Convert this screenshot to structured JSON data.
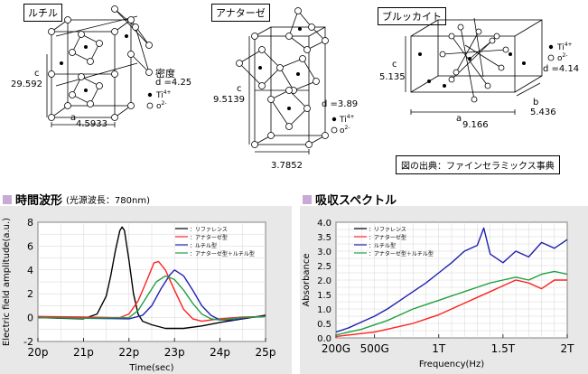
{
  "crystals": [
    {
      "name": "ルチル",
      "c": "c",
      "c_value": "29.592",
      "a": "a",
      "a_value": "4.5933",
      "density_label": "密度",
      "density": "d =4.25",
      "legend_ti": "Ti",
      "legend_ti_sup": "4+",
      "legend_o": "o",
      "legend_o_sup": "2-"
    },
    {
      "name": "アナターゼ",
      "c": "c",
      "c_value": "9.5139",
      "a_value": "3.7852",
      "density": "d =3.89",
      "legend_ti": "Ti",
      "legend_ti_sup": "4+",
      "legend_o": "o",
      "legend_o_sup": "2-"
    },
    {
      "name": "ブルッカイト",
      "c": "c",
      "c_value": "5.135",
      "a": "a",
      "a_value": "9.166",
      "b": "b",
      "b_value": "5.436",
      "density": "d =4.14",
      "legend_ti": "Ti",
      "legend_ti_sup": "4+",
      "legend_o": "o",
      "legend_o_sup": "2-"
    }
  ],
  "source_note": "図の出典：ファインセラミックス事典",
  "left_section": {
    "title": "時間波形",
    "subtitle": "(光源波長：780nm)"
  },
  "right_section": {
    "title": "吸収スペクトル"
  },
  "colors": {
    "reference": "#000000",
    "anatase": "#ff2020",
    "rutile": "#2020b0",
    "mixed": "#20a040",
    "panel_bg": "#e8e8e8",
    "title_square": "#c9a9d6"
  },
  "chart_data": [
    {
      "type": "line",
      "xlabel": "Time(sec)",
      "ylabel": "Electric field amplitude(a.u.)",
      "xlim": [
        20,
        25
      ],
      "ylim": [
        -2,
        8
      ],
      "x_ticks": [
        "20p",
        "21p",
        "22p",
        "23p",
        "24p",
        "25p"
      ],
      "y_ticks": [
        "-2",
        "0",
        "2",
        "4",
        "6",
        "8"
      ],
      "grid": true,
      "legend_position": "top-right",
      "series": [
        {
          "name": "：リファレンス",
          "color": "#000000",
          "x": [
            20.0,
            20.5,
            21.0,
            21.3,
            21.5,
            21.6,
            21.7,
            21.8,
            21.85,
            21.9,
            22.0,
            22.1,
            22.2,
            22.3,
            22.5,
            22.8,
            23.2,
            23.6,
            24.0,
            24.5,
            25.0
          ],
          "y": [
            0.0,
            -0.05,
            -0.1,
            0.3,
            1.8,
            3.5,
            5.6,
            7.3,
            7.6,
            7.3,
            4.8,
            2.0,
            0.3,
            -0.3,
            -0.6,
            -0.9,
            -0.9,
            -0.7,
            -0.4,
            -0.1,
            0.2
          ]
        },
        {
          "name": "：アナターゼ型",
          "color": "#ff2020",
          "x": [
            20.0,
            21.0,
            21.8,
            22.0,
            22.2,
            22.4,
            22.55,
            22.65,
            22.8,
            23.0,
            23.2,
            23.4,
            23.6,
            23.8,
            24.0,
            24.5,
            25.0
          ],
          "y": [
            0.1,
            0.05,
            0.0,
            0.3,
            1.4,
            3.2,
            4.6,
            4.7,
            4.0,
            2.3,
            0.7,
            -0.1,
            -0.3,
            -0.2,
            -0.1,
            0.05,
            0.1
          ]
        },
        {
          "name": "：ルチル型",
          "color": "#2020b0",
          "x": [
            20.0,
            21.0,
            22.0,
            22.3,
            22.5,
            22.7,
            22.9,
            23.0,
            23.2,
            23.4,
            23.6,
            23.8,
            24.0,
            24.3,
            24.6,
            25.0
          ],
          "y": [
            0.0,
            -0.05,
            -0.1,
            0.2,
            1.0,
            2.4,
            3.6,
            4.0,
            3.5,
            2.3,
            1.0,
            0.2,
            -0.2,
            -0.2,
            0.0,
            0.1
          ]
        },
        {
          "name": "：アナターゼ型＋ルチル型",
          "color": "#20a040",
          "x": [
            20.0,
            21.0,
            22.0,
            22.2,
            22.4,
            22.6,
            22.8,
            23.0,
            23.2,
            23.4,
            23.6,
            23.8,
            24.0,
            24.5,
            25.0
          ],
          "y": [
            0.0,
            -0.05,
            0.0,
            0.6,
            1.8,
            3.0,
            3.5,
            3.2,
            2.3,
            1.2,
            0.3,
            -0.1,
            -0.2,
            0.0,
            0.1
          ]
        }
      ]
    },
    {
      "type": "line",
      "xlabel": "Frequency(Hz)",
      "ylabel": "Absorbance",
      "xlim": [
        200,
        2000
      ],
      "ylim": [
        0,
        4.0
      ],
      "x_tick_values": [
        200,
        500,
        1000,
        1500,
        2000
      ],
      "x_ticks": [
        "200G",
        "500G",
        "1T",
        "1.5T",
        "2T"
      ],
      "y_ticks": [
        "0.0",
        "0.5",
        "1.0",
        "1.5",
        "2.0",
        "2.5",
        "3.0",
        "3.5",
        "4.0"
      ],
      "grid": true,
      "legend_position": "top-left",
      "series": [
        {
          "name": "：リファレンス",
          "color": "#000000",
          "x": [],
          "y": []
        },
        {
          "name": "：アナターゼ型",
          "color": "#ff2020",
          "x": [
            200,
            300,
            400,
            500,
            600,
            700,
            800,
            900,
            1000,
            1100,
            1200,
            1300,
            1400,
            1500,
            1600,
            1700,
            1800,
            1900,
            2000
          ],
          "y": [
            0.05,
            0.1,
            0.15,
            0.2,
            0.3,
            0.4,
            0.5,
            0.65,
            0.8,
            1.0,
            1.2,
            1.4,
            1.6,
            1.8,
            2.0,
            1.9,
            1.7,
            2.0,
            2.0
          ]
        },
        {
          "name": "：ルチル型",
          "color": "#2020b0",
          "x": [
            200,
            300,
            400,
            500,
            600,
            700,
            800,
            900,
            1000,
            1100,
            1200,
            1300,
            1350,
            1400,
            1500,
            1600,
            1700,
            1800,
            1900,
            2000
          ],
          "y": [
            0.2,
            0.35,
            0.55,
            0.75,
            1.0,
            1.3,
            1.6,
            1.9,
            2.25,
            2.6,
            3.0,
            3.2,
            3.8,
            2.9,
            2.6,
            3.0,
            2.8,
            3.3,
            3.1,
            3.4
          ]
        },
        {
          "name": "：アナターゼ型＋ルチル型",
          "color": "#20a040",
          "x": [
            200,
            300,
            400,
            500,
            600,
            700,
            800,
            900,
            1000,
            1100,
            1200,
            1300,
            1400,
            1500,
            1600,
            1700,
            1800,
            1900,
            2000
          ],
          "y": [
            0.1,
            0.2,
            0.3,
            0.45,
            0.6,
            0.8,
            1.0,
            1.15,
            1.3,
            1.45,
            1.6,
            1.75,
            1.9,
            2.0,
            2.1,
            2.0,
            2.2,
            2.3,
            2.2
          ]
        }
      ]
    }
  ]
}
